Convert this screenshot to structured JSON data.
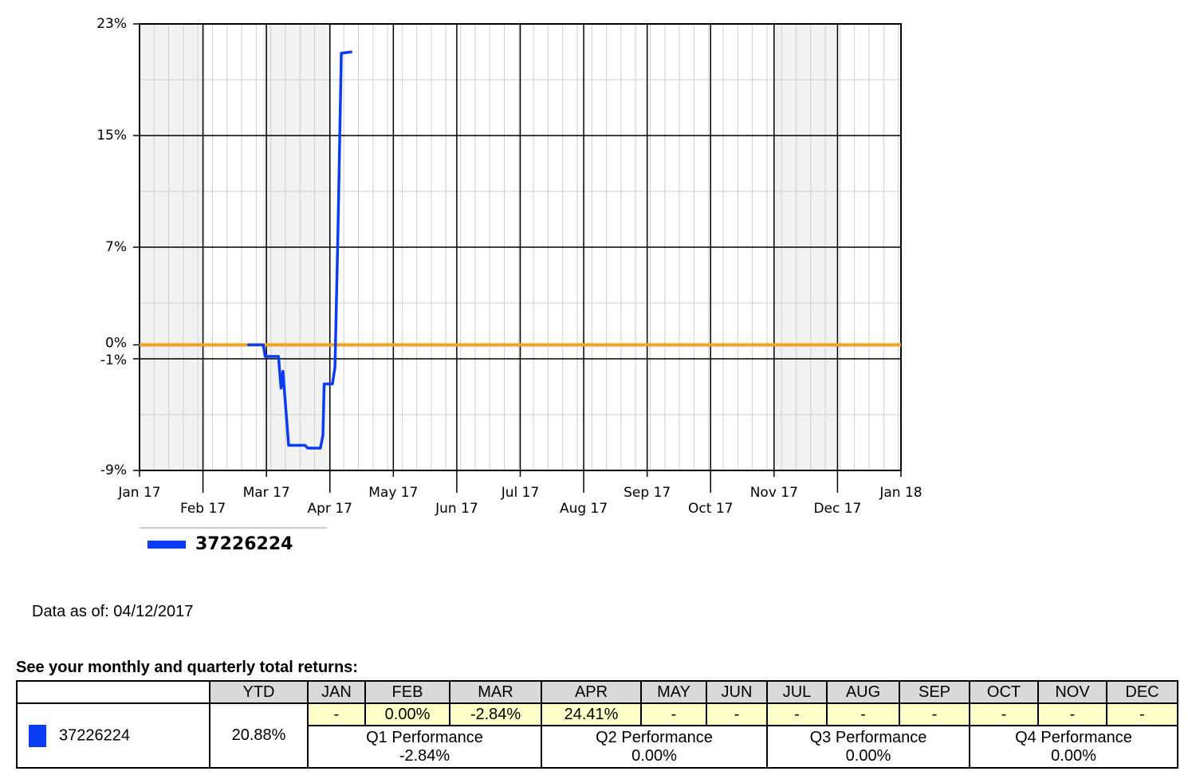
{
  "chart_data": {
    "type": "line",
    "xlim": [
      0,
      12
    ],
    "xticks": [
      {
        "value": 0,
        "label": "Jan 17"
      },
      {
        "value": 1,
        "label": "Feb 17"
      },
      {
        "value": 2,
        "label": "Mar 17"
      },
      {
        "value": 3,
        "label": "Apr 17"
      },
      {
        "value": 4,
        "label": "May 17"
      },
      {
        "value": 5,
        "label": "Jun 17"
      },
      {
        "value": 6,
        "label": "Jul 17"
      },
      {
        "value": 7,
        "label": "Aug 17"
      },
      {
        "value": 8,
        "label": "Sep 17"
      },
      {
        "value": 9,
        "label": "Oct 17"
      },
      {
        "value": 10,
        "label": "Nov 17"
      },
      {
        "value": 11,
        "label": "Dec 17"
      },
      {
        "value": 12,
        "label": "Jan 18"
      }
    ],
    "ylim": [
      -9,
      23
    ],
    "yticks": [
      {
        "value": 23,
        "label": "23%"
      },
      {
        "value": 15,
        "label": "15%"
      },
      {
        "value": 7,
        "label": "7%"
      },
      {
        "value": 0,
        "label": "0%"
      },
      {
        "value": -1,
        "label": "-1%"
      },
      {
        "value": -9,
        "label": "-9%"
      }
    ],
    "grid": true,
    "zero_line_color": "#f5a01e",
    "series": [
      {
        "name": "37226224",
        "color": "#0a3cf5",
        "x": [
          1.7,
          1.95,
          1.98,
          2.19,
          2.23,
          2.26,
          2.28,
          2.35,
          2.61,
          2.65,
          2.85,
          2.89,
          2.91,
          3.04,
          3.08,
          3.13,
          3.18,
          3.35
        ],
        "values": [
          0,
          0,
          -0.83,
          -0.83,
          -3.1,
          -1.9,
          -3.1,
          -7.2,
          -7.2,
          -7.4,
          -7.4,
          -6.5,
          -2.8,
          -2.8,
          -1.6,
          8.7,
          20.9,
          21.0
        ]
      }
    ]
  },
  "data_as_of": "Data as of: 04/12/2017",
  "returns": {
    "title": "See your monthly and quarterly total returns:",
    "header": [
      "YTD",
      "JAN",
      "FEB",
      "MAR",
      "APR",
      "MAY",
      "JUN",
      "JUL",
      "AUG",
      "SEP",
      "OCT",
      "NOV",
      "DEC"
    ],
    "rows": [
      {
        "name": "37226224",
        "color": "#0a3cf5",
        "ytd": "20.88%",
        "months": [
          "-",
          "0.00%",
          "-2.84%",
          "24.41%",
          "-",
          "-",
          "-",
          "-",
          "-",
          "-",
          "-",
          "-"
        ],
        "quarters": [
          {
            "label": "Q1 Performance",
            "value": "-2.84%"
          },
          {
            "label": "Q2 Performance",
            "value": "0.00%"
          },
          {
            "label": "Q3 Performance",
            "value": "0.00%"
          },
          {
            "label": "Q4 Performance",
            "value": "0.00%"
          }
        ]
      }
    ]
  }
}
